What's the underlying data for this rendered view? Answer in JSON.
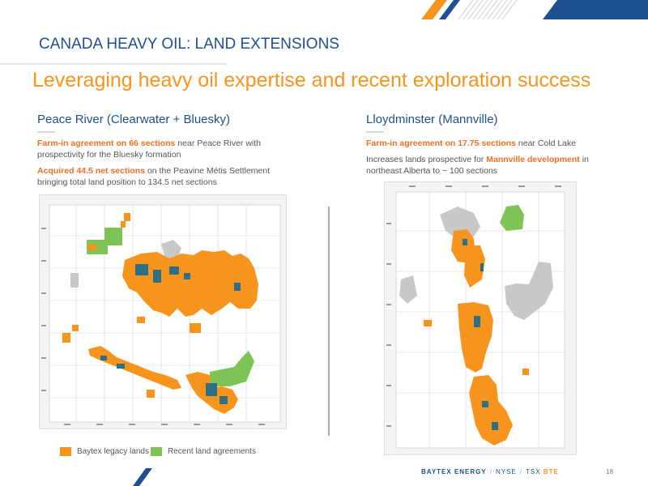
{
  "header": {
    "section_title": "CANADA HEAVY OIL:  LAND EXTENSIONS",
    "headline": "Leveraging heavy oil expertise and recent exploration success"
  },
  "left_column": {
    "heading": "Peace River (Clearwater + Bluesky)",
    "para1": {
      "highlight": "Farm-in agreement on 66 sections",
      "rest": " near Peace River with prospectivity for the Bluesky formation"
    },
    "para2": {
      "highlight": "Acquired 44.5 net sections",
      "rest": " on the Peavine Métis Settlement bringing total land position to 134.5 net sections"
    }
  },
  "right_column": {
    "heading": "Lloydminster (Mannville)",
    "para1": {
      "highlight": "Farm-in agreement on 17.75 sections",
      "rest": " near Cold Lake"
    },
    "para2": {
      "before": "Increases lands prospective for ",
      "highlight": "Mannville development",
      "after": " in northeast Alberta to ~ 100 sections"
    }
  },
  "legend": {
    "items": [
      {
        "label": "Baytex legacy lands",
        "color": "#f7941d"
      },
      {
        "label": "Recent land agreements",
        "color": "#7dc355"
      }
    ]
  },
  "footer": {
    "brand": "BAYTEX ENERGY",
    "exchange1": "NYSE",
    "exchange2": "TSX",
    "ticker": "BTE",
    "separator": "/",
    "page_number": "18"
  },
  "colors": {
    "title_blue": "#1d4f91",
    "accent_orange": "#f7941d",
    "highlight_orange": "#f26f21",
    "agreement_green": "#7dc355",
    "well_teal": "#2f6f86",
    "reserve_gray": "#c8c8c8"
  },
  "maps": [
    {
      "name": "peace-river-land-map"
    },
    {
      "name": "lloydminster-land-map"
    }
  ]
}
